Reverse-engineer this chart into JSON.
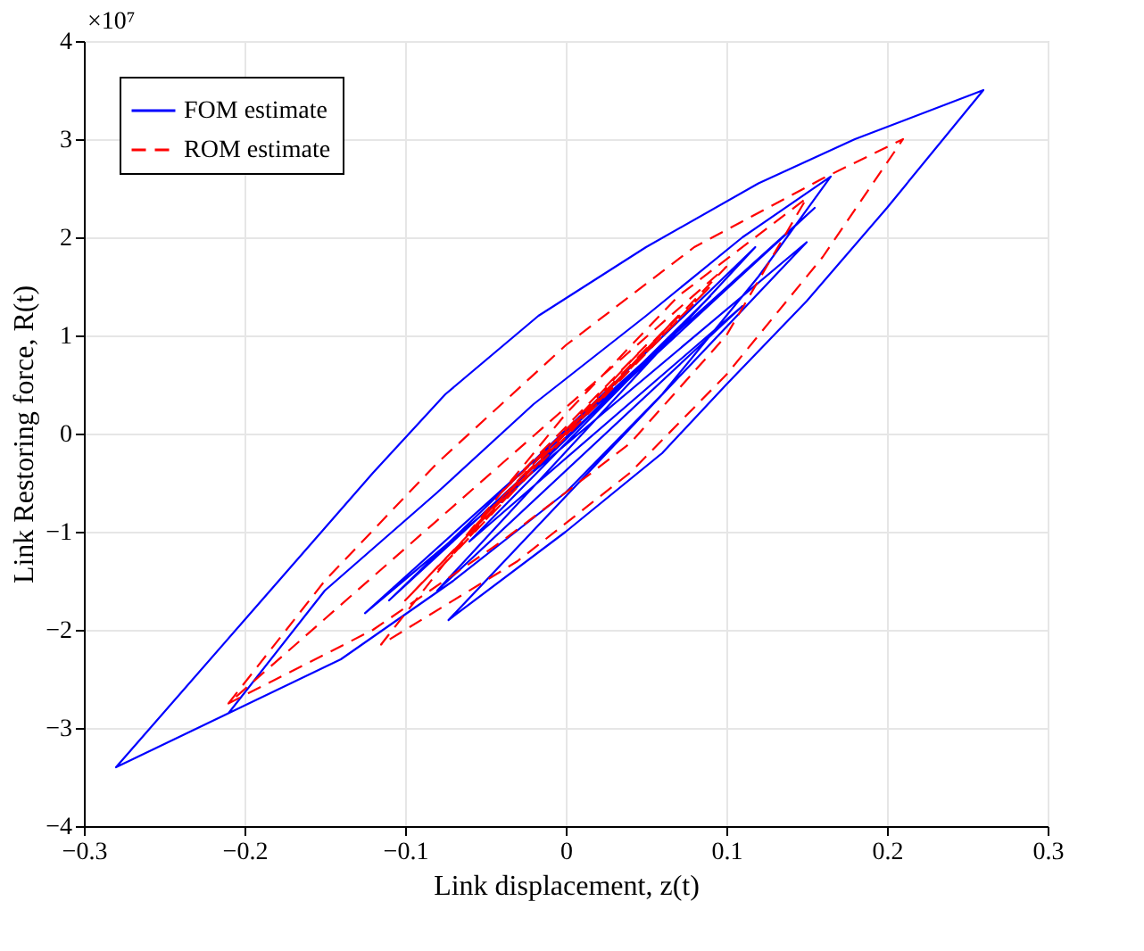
{
  "chart_data": {
    "type": "line",
    "xlabel": "Link displacement, z(t)",
    "ylabel": "Link Restoring force, R(t)",
    "annotations": [
      "×10⁷"
    ],
    "xlim": [
      -0.3,
      0.3
    ],
    "xticks": [
      -0.3,
      -0.2,
      -0.1,
      0,
      0.1,
      0.2,
      0.3
    ],
    "ylim": [
      -4,
      4
    ],
    "yticks": [
      -4,
      -3,
      -2,
      -1,
      0,
      1,
      2,
      3,
      4
    ],
    "grid": true,
    "legend": "top left",
    "series": [
      {
        "name": "FOM estimate",
        "color": "#0000ff",
        "line_style": "solid",
        "x": [
          -0.21,
          -0.15,
          -0.08,
          -0.02,
          0.05,
          0.11,
          0.165,
          0.12,
          0.06,
          0.0,
          -0.07,
          -0.14,
          -0.21,
          -0.28,
          -0.2,
          -0.12,
          -0.075,
          -0.017,
          0.05,
          0.12,
          0.18,
          0.26,
          0.2,
          0.15,
          0.1,
          0.06,
          0.0,
          -0.073,
          0.15,
          -0.125,
          0.155,
          -0.11,
          0.118,
          -0.08,
          0.11,
          -0.06,
          0.09,
          -0.04,
          0.06,
          -0.02,
          0.03,
          0.0
        ],
        "values": [
          -2.85,
          -1.6,
          -0.6,
          0.3,
          1.2,
          2.0,
          2.62,
          1.6,
          0.4,
          -0.6,
          -1.5,
          -2.3,
          -2.85,
          -3.4,
          -1.9,
          -0.4,
          0.4,
          1.2,
          1.9,
          2.55,
          3.0,
          3.5,
          2.3,
          1.35,
          0.5,
          -0.2,
          -1.0,
          -1.9,
          1.95,
          -1.83,
          2.3,
          -1.7,
          1.9,
          -1.6,
          1.3,
          -1.1,
          1.4,
          -0.7,
          0.9,
          -0.3,
          0.5,
          0.0
        ]
      },
      {
        "name": "ROM estimate",
        "color": "#ff0000",
        "line_style": "dashed",
        "x": [
          -0.21,
          -0.15,
          -0.08,
          0.0,
          0.08,
          0.16,
          0.21,
          0.16,
          0.1,
          0.04,
          -0.03,
          -0.115,
          -0.06,
          0.0,
          0.07,
          0.15,
          0.1,
          0.04,
          -0.04,
          -0.12,
          -0.21,
          0.1,
          -0.1,
          0.09,
          -0.08,
          0.07,
          -0.06,
          0.05,
          -0.04,
          0.03,
          0.0
        ],
        "values": [
          -2.75,
          -1.5,
          -0.3,
          0.9,
          1.9,
          2.6,
          3.0,
          1.8,
          0.6,
          -0.4,
          -1.3,
          -2.15,
          -1.0,
          0.2,
          1.4,
          2.4,
          1.0,
          -0.1,
          -1.1,
          -2.0,
          -2.75,
          1.7,
          -1.7,
          1.5,
          -1.4,
          1.2,
          -1.0,
          0.9,
          -0.6,
          0.5,
          0.0
        ]
      }
    ]
  }
}
